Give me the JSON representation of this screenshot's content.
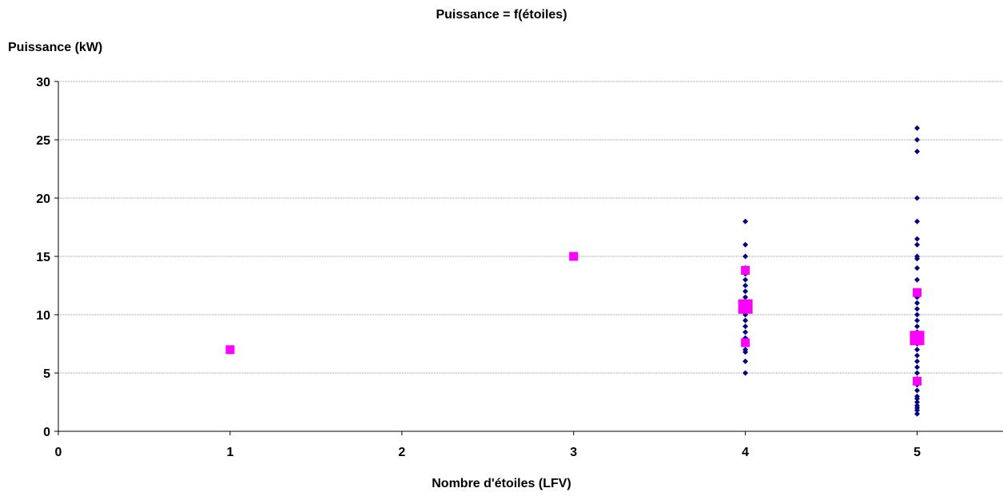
{
  "chart_data": {
    "type": "scatter",
    "title": "Puissance = f(étoiles)",
    "xlabel": "Nombre d'étoiles (LFV)",
    "ylabel": "Puissance (kW)",
    "xlim": [
      0,
      5.5
    ],
    "ylim": [
      0,
      30
    ],
    "xticks": [
      "0",
      "1",
      "2",
      "3",
      "4",
      "5"
    ],
    "yticks": [
      "0",
      "5",
      "10",
      "15",
      "20",
      "25",
      "30"
    ],
    "grid": "horizontal",
    "legend": "none",
    "colors": {
      "points": "#000080",
      "averages": "#ff00ff"
    },
    "series": [
      {
        "marker": "diamond",
        "color": "#000080",
        "points": [
          [
            4,
            5
          ],
          [
            4,
            6
          ],
          [
            4,
            6.8
          ],
          [
            4,
            7
          ],
          [
            4,
            7.5
          ],
          [
            4,
            8
          ],
          [
            4,
            8.5
          ],
          [
            4,
            9
          ],
          [
            4,
            9.5
          ],
          [
            4,
            10
          ],
          [
            4,
            10.5
          ],
          [
            4,
            11
          ],
          [
            4,
            11.5
          ],
          [
            4,
            12
          ],
          [
            4,
            12.5
          ],
          [
            4,
            13
          ],
          [
            4,
            13.5
          ],
          [
            4,
            14
          ],
          [
            4,
            15
          ],
          [
            4,
            16
          ],
          [
            4,
            18
          ],
          [
            5,
            1.5
          ],
          [
            5,
            1.8
          ],
          [
            5,
            2
          ],
          [
            5,
            2.2
          ],
          [
            5,
            2.5
          ],
          [
            5,
            2.8
          ],
          [
            5,
            3
          ],
          [
            5,
            3.5
          ],
          [
            5,
            4
          ],
          [
            5,
            4.5
          ],
          [
            5,
            5
          ],
          [
            5,
            5.5
          ],
          [
            5,
            6
          ],
          [
            5,
            6.5
          ],
          [
            5,
            7
          ],
          [
            5,
            7.5
          ],
          [
            5,
            8
          ],
          [
            5,
            8.5
          ],
          [
            5,
            9
          ],
          [
            5,
            9.5
          ],
          [
            5,
            10
          ],
          [
            5,
            10.5
          ],
          [
            5,
            11
          ],
          [
            5,
            11.5
          ],
          [
            5,
            12
          ],
          [
            5,
            13
          ],
          [
            5,
            14
          ],
          [
            5,
            14.8
          ],
          [
            5,
            15
          ],
          [
            5,
            16
          ],
          [
            5,
            16.5
          ],
          [
            5,
            18
          ],
          [
            5,
            20
          ],
          [
            5,
            24
          ],
          [
            5,
            25
          ],
          [
            5,
            26
          ]
        ]
      },
      {
        "marker": "square",
        "color": "#ff00ff",
        "points": [
          {
            "x": 1,
            "y": 7,
            "size": "small"
          },
          {
            "x": 3,
            "y": 15,
            "size": "small"
          },
          {
            "x": 4,
            "y": 13.8,
            "size": "small"
          },
          {
            "x": 4,
            "y": 10.7,
            "size": "large"
          },
          {
            "x": 4,
            "y": 7.6,
            "size": "small"
          },
          {
            "x": 5,
            "y": 11.9,
            "size": "small"
          },
          {
            "x": 5,
            "y": 8,
            "size": "large"
          },
          {
            "x": 5,
            "y": 4.3,
            "size": "small"
          }
        ]
      }
    ]
  }
}
